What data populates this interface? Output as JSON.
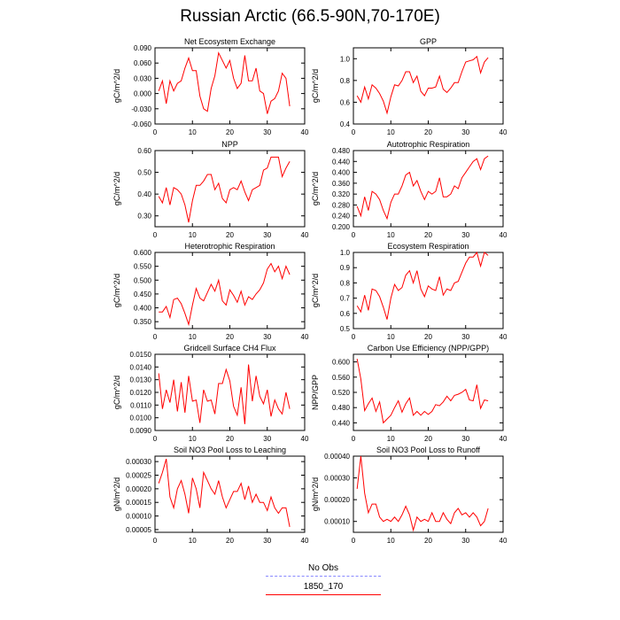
{
  "title": "Russian Arctic (66.5-90N,70-170E)",
  "legend": [
    {
      "label": "No Obs",
      "color": "#8888ff",
      "style": "dashed"
    },
    {
      "label": "1850_170",
      "color": "#ff0000",
      "style": "solid"
    }
  ],
  "chart_data": [
    {
      "type": "line",
      "title": "Net Ecosystem Exchange",
      "ylabel": "gC/m^2/d",
      "xlim": [
        0,
        40
      ],
      "xticks": [
        0,
        10,
        20,
        30,
        40
      ],
      "ylim": [
        -0.06,
        0.09
      ],
      "yticks": [
        "-0.060",
        "-0.030",
        "0.000",
        "0.030",
        "0.060",
        "0.090"
      ],
      "series": [
        {
          "color": "#ff0000",
          "x": [
            1,
            2,
            3,
            4,
            5,
            6,
            7,
            8,
            9,
            10,
            11,
            12,
            13,
            14,
            15,
            16,
            17,
            18,
            19,
            20,
            21,
            22,
            23,
            24,
            25,
            26,
            27,
            28,
            29,
            30,
            31,
            32,
            33,
            34,
            35,
            36
          ],
          "y": [
            0.005,
            0.025,
            -0.02,
            0.025,
            0.005,
            0.02,
            0.025,
            0.05,
            0.07,
            0.045,
            0.045,
            -0.005,
            -0.03,
            -0.035,
            0.01,
            0.035,
            0.08,
            0.065,
            0.05,
            0.065,
            0.03,
            0.01,
            0.02,
            0.075,
            0.025,
            0.025,
            0.05,
            0.005,
            0.0,
            -0.04,
            -0.015,
            -0.01,
            0.005,
            0.04,
            0.03,
            -0.025
          ]
        }
      ]
    },
    {
      "type": "line",
      "title": "GPP",
      "ylabel": "gC/m^2/d",
      "xlim": [
        0,
        40
      ],
      "xticks": [
        0,
        10,
        20,
        30,
        40
      ],
      "ylim": [
        0.4,
        1.1
      ],
      "yticks": [
        "0.4",
        "0.6",
        "0.8",
        "1.0"
      ],
      "series": [
        {
          "color": "#ff0000",
          "x": [
            1,
            2,
            3,
            4,
            5,
            6,
            7,
            8,
            9,
            10,
            11,
            12,
            13,
            14,
            15,
            16,
            17,
            18,
            19,
            20,
            21,
            22,
            23,
            24,
            25,
            26,
            27,
            28,
            29,
            30,
            31,
            32,
            33,
            34,
            35,
            36
          ],
          "y": [
            0.66,
            0.6,
            0.74,
            0.63,
            0.76,
            0.73,
            0.68,
            0.61,
            0.5,
            0.65,
            0.76,
            0.75,
            0.8,
            0.88,
            0.88,
            0.78,
            0.84,
            0.7,
            0.66,
            0.73,
            0.73,
            0.74,
            0.84,
            0.72,
            0.69,
            0.73,
            0.78,
            0.78,
            0.88,
            0.97,
            0.98,
            0.99,
            1.02,
            0.87,
            0.97,
            1.01
          ]
        }
      ]
    },
    {
      "type": "line",
      "title": "NPP",
      "ylabel": "gC/m^2/d",
      "xlim": [
        0,
        40
      ],
      "xticks": [
        0,
        10,
        20,
        30,
        40
      ],
      "ylim": [
        0.25,
        0.6
      ],
      "yticks": [
        "0.30",
        "0.40",
        "0.50",
        "0.60"
      ],
      "series": [
        {
          "color": "#ff0000",
          "x": [
            1,
            2,
            3,
            4,
            5,
            6,
            7,
            8,
            9,
            10,
            11,
            12,
            13,
            14,
            15,
            16,
            17,
            18,
            19,
            20,
            21,
            22,
            23,
            24,
            25,
            26,
            27,
            28,
            29,
            30,
            31,
            32,
            33,
            34,
            35,
            36
          ],
          "y": [
            0.39,
            0.36,
            0.43,
            0.35,
            0.43,
            0.42,
            0.4,
            0.35,
            0.27,
            0.37,
            0.44,
            0.44,
            0.46,
            0.49,
            0.49,
            0.42,
            0.45,
            0.38,
            0.36,
            0.42,
            0.43,
            0.42,
            0.46,
            0.41,
            0.37,
            0.42,
            0.43,
            0.44,
            0.51,
            0.52,
            0.57,
            0.57,
            0.57,
            0.48,
            0.52,
            0.55
          ]
        }
      ]
    },
    {
      "type": "line",
      "title": "Autotrophic Respiration",
      "ylabel": "gC/m^2/d",
      "xlim": [
        0,
        40
      ],
      "xticks": [
        0,
        10,
        20,
        30,
        40
      ],
      "ylim": [
        0.2,
        0.48
      ],
      "yticks": [
        "0.200",
        "0.240",
        "0.280",
        "0.320",
        "0.360",
        "0.400",
        "0.440",
        "0.480"
      ],
      "series": [
        {
          "color": "#ff0000",
          "x": [
            1,
            2,
            3,
            4,
            5,
            6,
            7,
            8,
            9,
            10,
            11,
            12,
            13,
            14,
            15,
            16,
            17,
            18,
            19,
            20,
            21,
            22,
            23,
            24,
            25,
            26,
            27,
            28,
            29,
            30,
            31,
            32,
            33,
            34,
            35,
            36
          ],
          "y": [
            0.275,
            0.24,
            0.31,
            0.26,
            0.33,
            0.32,
            0.3,
            0.26,
            0.23,
            0.29,
            0.32,
            0.32,
            0.35,
            0.39,
            0.4,
            0.35,
            0.37,
            0.33,
            0.3,
            0.33,
            0.32,
            0.33,
            0.38,
            0.31,
            0.31,
            0.32,
            0.35,
            0.34,
            0.38,
            0.4,
            0.42,
            0.44,
            0.45,
            0.41,
            0.45,
            0.46
          ]
        }
      ]
    },
    {
      "type": "line",
      "title": "Heterotrophic Respiration",
      "ylabel": "gC/m^2/d",
      "xlim": [
        0,
        40
      ],
      "xticks": [
        0,
        10,
        20,
        30,
        40
      ],
      "ylim": [
        0.325,
        0.6
      ],
      "yticks": [
        "0.350",
        "0.400",
        "0.450",
        "0.500",
        "0.550",
        "0.600"
      ],
      "series": [
        {
          "color": "#ff0000",
          "x": [
            1,
            2,
            3,
            4,
            5,
            6,
            7,
            8,
            9,
            10,
            11,
            12,
            13,
            14,
            15,
            16,
            17,
            18,
            19,
            20,
            21,
            22,
            23,
            24,
            25,
            26,
            27,
            28,
            29,
            30,
            31,
            32,
            33,
            34,
            35,
            36
          ],
          "y": [
            0.385,
            0.385,
            0.405,
            0.365,
            0.43,
            0.435,
            0.415,
            0.38,
            0.34,
            0.41,
            0.47,
            0.435,
            0.425,
            0.455,
            0.485,
            0.46,
            0.5,
            0.425,
            0.41,
            0.465,
            0.445,
            0.42,
            0.46,
            0.41,
            0.44,
            0.43,
            0.45,
            0.465,
            0.49,
            0.54,
            0.56,
            0.53,
            0.55,
            0.505,
            0.55,
            0.52
          ]
        }
      ]
    },
    {
      "type": "line",
      "title": "Ecosystem Respiration",
      "ylabel": "gC/m^2/d",
      "xlim": [
        0,
        40
      ],
      "xticks": [
        0,
        10,
        20,
        30,
        40
      ],
      "ylim": [
        0.5,
        1.0
      ],
      "yticks": [
        "0.5",
        "0.6",
        "0.7",
        "0.8",
        "0.9",
        "1.0"
      ],
      "series": [
        {
          "color": "#ff0000",
          "x": [
            1,
            2,
            3,
            4,
            5,
            6,
            7,
            8,
            9,
            10,
            11,
            12,
            13,
            14,
            15,
            16,
            17,
            18,
            19,
            20,
            21,
            22,
            23,
            24,
            25,
            26,
            27,
            28,
            29,
            30,
            31,
            32,
            33,
            34,
            35,
            36
          ],
          "y": [
            0.65,
            0.61,
            0.72,
            0.62,
            0.76,
            0.75,
            0.71,
            0.64,
            0.56,
            0.7,
            0.79,
            0.75,
            0.77,
            0.85,
            0.88,
            0.8,
            0.88,
            0.76,
            0.71,
            0.78,
            0.76,
            0.75,
            0.84,
            0.72,
            0.76,
            0.75,
            0.8,
            0.81,
            0.87,
            0.93,
            0.97,
            0.97,
            1.0,
            0.91,
            1.0,
            0.98
          ]
        }
      ]
    },
    {
      "type": "line",
      "title": "Gridcell Surface CH4 Flux",
      "ylabel": "gC/m^2/d",
      "xlim": [
        0,
        40
      ],
      "xticks": [
        0,
        10,
        20,
        30,
        40
      ],
      "ylim": [
        0.009,
        0.015
      ],
      "yticks": [
        "0.0090",
        "0.0100",
        "0.0110",
        "0.0120",
        "0.0130",
        "0.0140",
        "0.0150"
      ],
      "series": [
        {
          "color": "#ff0000",
          "x": [
            1,
            2,
            3,
            4,
            5,
            6,
            7,
            8,
            9,
            10,
            11,
            12,
            13,
            14,
            15,
            16,
            17,
            18,
            19,
            20,
            21,
            22,
            23,
            24,
            25,
            26,
            27,
            28,
            29,
            30,
            31,
            32,
            33,
            34,
            35,
            36
          ],
          "y": [
            0.0135,
            0.0107,
            0.0122,
            0.0112,
            0.013,
            0.0105,
            0.0128,
            0.0104,
            0.0133,
            0.0113,
            0.0114,
            0.0096,
            0.0122,
            0.0113,
            0.0114,
            0.0103,
            0.0127,
            0.0127,
            0.0138,
            0.0129,
            0.0109,
            0.0102,
            0.0124,
            0.0095,
            0.0142,
            0.0113,
            0.0133,
            0.0117,
            0.0111,
            0.0122,
            0.0101,
            0.0114,
            0.0107,
            0.0103,
            0.012,
            0.0107
          ]
        }
      ]
    },
    {
      "type": "line",
      "title": "Carbon Use Efficiency (NPP/GPP)",
      "ylabel": "NPP/GPP",
      "xlim": [
        0,
        40
      ],
      "xticks": [
        0,
        10,
        20,
        30,
        40
      ],
      "ylim": [
        0.42,
        0.62
      ],
      "yticks": [
        "0.440",
        "0.480",
        "0.520",
        "0.560",
        "0.600"
      ],
      "series": [
        {
          "color": "#ff0000",
          "x": [
            1,
            2,
            3,
            4,
            5,
            6,
            7,
            8,
            9,
            10,
            11,
            12,
            13,
            14,
            15,
            16,
            17,
            18,
            19,
            20,
            21,
            22,
            23,
            24,
            25,
            26,
            27,
            28,
            29,
            30,
            31,
            32,
            33,
            34,
            35,
            36
          ],
          "y": [
            0.608,
            0.555,
            0.472,
            0.49,
            0.505,
            0.47,
            0.495,
            0.44,
            0.45,
            0.46,
            0.48,
            0.498,
            0.468,
            0.49,
            0.505,
            0.46,
            0.47,
            0.46,
            0.47,
            0.462,
            0.47,
            0.488,
            0.485,
            0.495,
            0.51,
            0.498,
            0.512,
            0.515,
            0.52,
            0.528,
            0.5,
            0.498,
            0.54,
            0.478,
            0.5,
            0.498
          ]
        }
      ]
    },
    {
      "type": "line",
      "title": "Soil NO3 Pool Loss to Leaching",
      "ylabel": "gN/m^2/d",
      "xlim": [
        0,
        40
      ],
      "xticks": [
        0,
        10,
        20,
        30,
        40
      ],
      "ylim": [
        4e-05,
        0.00032
      ],
      "yticks": [
        "0.00005",
        "0.00010",
        "0.00015",
        "0.00020",
        "0.00025",
        "0.00030"
      ],
      "series": [
        {
          "color": "#ff0000",
          "x": [
            1,
            2,
            3,
            4,
            5,
            6,
            7,
            8,
            9,
            10,
            11,
            12,
            13,
            14,
            15,
            16,
            17,
            18,
            19,
            20,
            21,
            22,
            23,
            24,
            25,
            26,
            27,
            28,
            29,
            30,
            31,
            32,
            33,
            34,
            35,
            36
          ],
          "y": [
            0.00022,
            0.00026,
            0.00031,
            0.00017,
            0.00013,
            0.0002,
            0.00023,
            0.00018,
            0.00011,
            0.00024,
            0.0002,
            0.00013,
            0.00026,
            0.00023,
            0.0002,
            0.00018,
            0.00023,
            0.00017,
            0.00013,
            0.00016,
            0.00019,
            0.00019,
            0.00022,
            0.00016,
            0.00021,
            0.00015,
            0.00018,
            0.00015,
            0.00015,
            0.00012,
            0.00017,
            0.00013,
            0.00011,
            0.00013,
            0.00013,
            6e-05
          ]
        }
      ]
    },
    {
      "type": "line",
      "title": "Soil NO3 Pool Loss to Runoff",
      "ylabel": "gN/m^2/d",
      "xlim": [
        0,
        40
      ],
      "xticks": [
        0,
        10,
        20,
        30,
        40
      ],
      "ylim": [
        5e-05,
        0.0004
      ],
      "yticks": [
        "0.00010",
        "0.00020",
        "0.00030",
        "0.00040"
      ],
      "series": [
        {
          "color": "#ff0000",
          "x": [
            1,
            2,
            3,
            4,
            5,
            6,
            7,
            8,
            9,
            10,
            11,
            12,
            13,
            14,
            15,
            16,
            17,
            18,
            19,
            20,
            21,
            22,
            23,
            24,
            25,
            26,
            27,
            28,
            29,
            30,
            31,
            32,
            33,
            34,
            35,
            36
          ],
          "y": [
            0.00025,
            0.0004,
            0.00023,
            0.00014,
            0.00018,
            0.00018,
            0.00012,
            0.0001,
            0.00011,
            0.0001,
            0.00012,
            0.0001,
            0.00013,
            0.00017,
            0.00013,
            6e-05,
            0.00012,
            0.0001,
            0.00011,
            0.0001,
            0.00014,
            0.0001,
            0.0001,
            0.00014,
            0.00011,
            9e-05,
            0.00014,
            0.00016,
            0.00013,
            0.00014,
            0.00012,
            0.00014,
            0.00012,
            8e-05,
            0.0001,
            0.00016
          ]
        }
      ]
    }
  ]
}
